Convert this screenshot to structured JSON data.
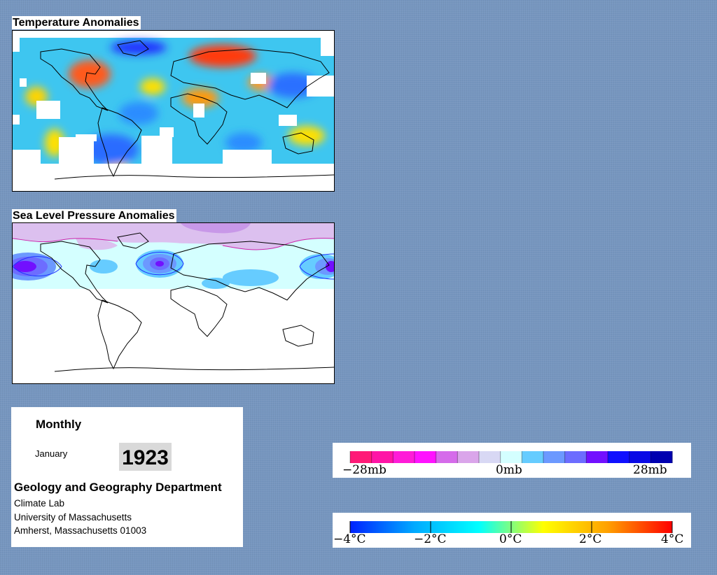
{
  "temperature_map": {
    "title": "Temperature Anomalies"
  },
  "pressure_map": {
    "title": "Sea Level Pressure Anomalies"
  },
  "info": {
    "frequency": "Monthly",
    "month": "January",
    "year": "1923",
    "department": "Geology and Geography Department",
    "lines": [
      "Climate Lab",
      "University of Massachusetts",
      "Amherst, Massachusetts 01003"
    ]
  },
  "pressure_scale": {
    "labels": [
      "−28mb",
      "0mb",
      "28mb"
    ],
    "colors": [
      "#ff1a77",
      "#ff14a6",
      "#ff1bd8",
      "#ff12ff",
      "#d56bea",
      "#daa5ea",
      "#d8d8f4",
      "#d4ffff",
      "#66ccff",
      "#6c99ff",
      "#6d6dff",
      "#7210ff",
      "#1010ff",
      "#0a0ae6",
      "#0000b0"
    ]
  },
  "temperature_scale": {
    "labels": [
      "−4°C",
      "−2°C",
      "0°C",
      "2°C",
      "4°C"
    ],
    "colors": [
      "#0022ff",
      "#00aaff",
      "#00ffff",
      "#ffff00",
      "#ffa000",
      "#ff0000"
    ]
  }
}
